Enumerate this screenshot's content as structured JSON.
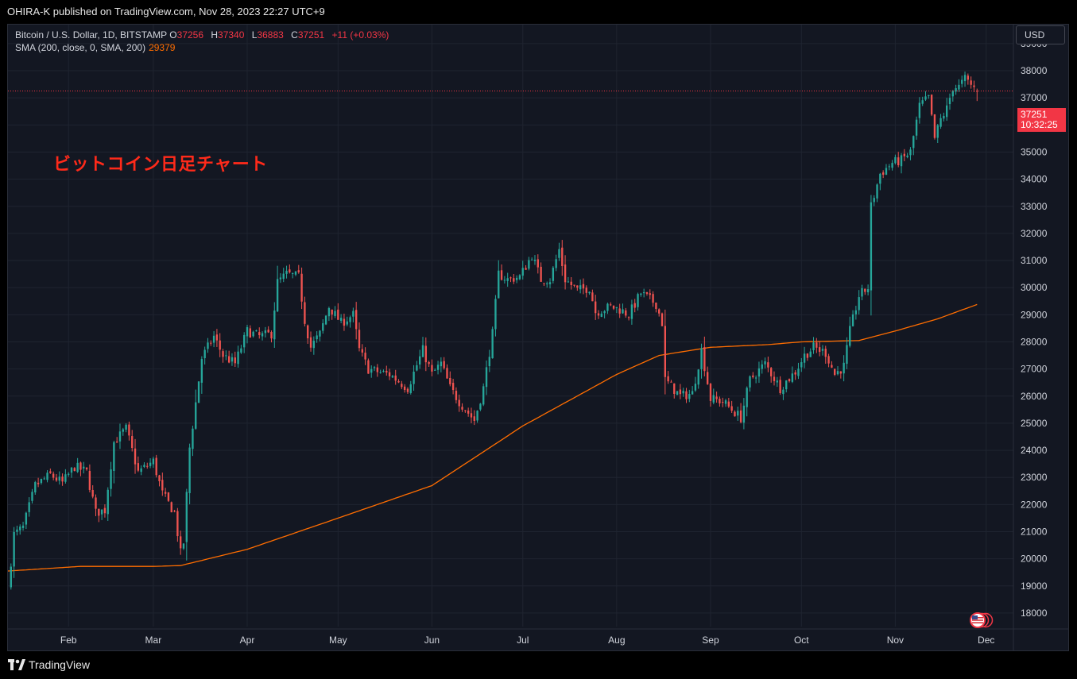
{
  "header": {
    "publisher_text": "OHIRA-K published on TradingView.com, Nov 28, 2023 22:27 UTC+9"
  },
  "legend": {
    "symbol": "Bitcoin / U.S. Dollar, 1D, BITSTAMP",
    "open_label": "O",
    "open": "37256",
    "high_label": "H",
    "high": "37340",
    "low_label": "L",
    "low": "36883",
    "close_label": "C",
    "close": "37251",
    "change": "+11 (+0.03%)",
    "sma_label": "SMA (200, close, 0, SMA, 200)",
    "sma_value": "29379"
  },
  "annotation": "ビットコイン日足チャート",
  "price_scale": {
    "currency": "USD",
    "last_price": "37251",
    "countdown": "10:32:25"
  },
  "footer": {
    "brand": "TradingView"
  },
  "colors": {
    "background": "#131722",
    "grid": "#1f2430",
    "up": "#26a69a",
    "down": "#ef5350",
    "sma": "#ff6d00",
    "annotation": "#ff2a1a",
    "price_tag": "#f23645"
  },
  "chart_data": {
    "type": "candlestick",
    "y_ticks": [
      18000,
      19000,
      20000,
      21000,
      22000,
      23000,
      24000,
      25000,
      26000,
      27000,
      28000,
      29000,
      30000,
      31000,
      32000,
      33000,
      34000,
      35000,
      36000,
      37000,
      38000,
      39000
    ],
    "ylim": [
      17500,
      39700
    ],
    "x_ticks": [
      {
        "label": "Feb",
        "date": "2023-02-01"
      },
      {
        "label": "Mar",
        "date": "2023-03-01"
      },
      {
        "label": "Apr",
        "date": "2023-04-01"
      },
      {
        "label": "May",
        "date": "2023-05-01"
      },
      {
        "label": "Jun",
        "date": "2023-06-01"
      },
      {
        "label": "Jul",
        "date": "2023-07-01"
      },
      {
        "label": "Aug",
        "date": "2023-08-01"
      },
      {
        "label": "Sep",
        "date": "2023-09-01"
      },
      {
        "label": "Oct",
        "date": "2023-10-01"
      },
      {
        "label": "Nov",
        "date": "2023-11-01"
      },
      {
        "label": "Dec",
        "date": "2023-12-01"
      }
    ],
    "xlim": [
      "2023-01-12",
      "2023-12-10"
    ],
    "close_series_keypoints": [
      [
        "2023-01-12",
        18900
      ],
      [
        "2023-01-14",
        20900
      ],
      [
        "2023-01-17",
        21150
      ],
      [
        "2023-01-21",
        22700
      ],
      [
        "2023-01-26",
        23100
      ],
      [
        "2023-01-30",
        22800
      ],
      [
        "2023-02-03",
        23400
      ],
      [
        "2023-02-07",
        23200
      ],
      [
        "2023-02-10",
        21700
      ],
      [
        "2023-02-13",
        21800
      ],
      [
        "2023-02-16",
        24300
      ],
      [
        "2023-02-20",
        24800
      ],
      [
        "2023-02-24",
        23200
      ],
      [
        "2023-03-01",
        23600
      ],
      [
        "2023-03-04",
        22400
      ],
      [
        "2023-03-08",
        21700
      ],
      [
        "2023-03-10",
        20200
      ],
      [
        "2023-03-11",
        20600
      ],
      [
        "2023-03-13",
        24100
      ],
      [
        "2023-03-17",
        27400
      ],
      [
        "2023-03-21",
        28200
      ],
      [
        "2023-03-24",
        27500
      ],
      [
        "2023-03-28",
        27200
      ],
      [
        "2023-04-01",
        28400
      ],
      [
        "2023-04-05",
        28200
      ],
      [
        "2023-04-09",
        28300
      ],
      [
        "2023-04-11",
        30200
      ],
      [
        "2023-04-14",
        30500
      ],
      [
        "2023-04-18",
        30400
      ],
      [
        "2023-04-20",
        28800
      ],
      [
        "2023-04-22",
        27800
      ],
      [
        "2023-04-25",
        28300
      ],
      [
        "2023-04-28",
        29300
      ],
      [
        "2023-05-02",
        28700
      ],
      [
        "2023-05-06",
        29000
      ],
      [
        "2023-05-08",
        27700
      ],
      [
        "2023-05-11",
        27000
      ],
      [
        "2023-05-14",
        26900
      ],
      [
        "2023-05-18",
        26800
      ],
      [
        "2023-05-24",
        26300
      ],
      [
        "2023-05-29",
        27700
      ],
      [
        "2023-06-01",
        26800
      ],
      [
        "2023-06-04",
        27200
      ],
      [
        "2023-06-07",
        26300
      ],
      [
        "2023-06-10",
        25800
      ],
      [
        "2023-06-15",
        25100
      ],
      [
        "2023-06-18",
        26300
      ],
      [
        "2023-06-21",
        28300
      ],
      [
        "2023-06-23",
        30500
      ],
      [
        "2023-06-26",
        30300
      ],
      [
        "2023-06-30",
        30400
      ],
      [
        "2023-07-04",
        31200
      ],
      [
        "2023-07-07",
        30300
      ],
      [
        "2023-07-10",
        30300
      ],
      [
        "2023-07-13",
        31400
      ],
      [
        "2023-07-15",
        30300
      ],
      [
        "2023-07-19",
        29900
      ],
      [
        "2023-07-23",
        30000
      ],
      [
        "2023-07-25",
        29100
      ],
      [
        "2023-07-30",
        29300
      ],
      [
        "2023-08-02",
        29200
      ],
      [
        "2023-08-05",
        29000
      ],
      [
        "2023-08-09",
        29800
      ],
      [
        "2023-08-14",
        29400
      ],
      [
        "2023-08-16",
        28700
      ],
      [
        "2023-08-17",
        26600
      ],
      [
        "2023-08-22",
        26000
      ],
      [
        "2023-08-26",
        26100
      ],
      [
        "2023-08-29",
        27700
      ],
      [
        "2023-09-01",
        25900
      ],
      [
        "2023-09-05",
        25800
      ],
      [
        "2023-09-11",
        25200
      ],
      [
        "2023-09-14",
        26600
      ],
      [
        "2023-09-19",
        27200
      ],
      [
        "2023-09-24",
        26300
      ],
      [
        "2023-09-29",
        26900
      ],
      [
        "2023-10-02",
        27500
      ],
      [
        "2023-10-05",
        27800
      ],
      [
        "2023-10-09",
        27600
      ],
      [
        "2023-10-12",
        26800
      ],
      [
        "2023-10-15",
        27100
      ],
      [
        "2023-10-17",
        28400
      ],
      [
        "2023-10-20",
        29700
      ],
      [
        "2023-10-23",
        30000
      ],
      [
        "2023-10-24",
        33000
      ],
      [
        "2023-10-27",
        34200
      ],
      [
        "2023-10-31",
        34600
      ],
      [
        "2023-11-03",
        34700
      ],
      [
        "2023-11-06",
        35000
      ],
      [
        "2023-11-09",
        36700
      ],
      [
        "2023-11-12",
        37000
      ],
      [
        "2023-11-14",
        35500
      ],
      [
        "2023-11-16",
        36200
      ],
      [
        "2023-11-18",
        36600
      ],
      [
        "2023-11-20",
        37400
      ],
      [
        "2023-11-22",
        37400
      ],
      [
        "2023-11-24",
        37700
      ],
      [
        "2023-11-28",
        37251
      ]
    ],
    "last": {
      "date": "2023-11-28",
      "open": 37256,
      "high": 37340,
      "low": 36883,
      "close": 37251
    },
    "sma200_keypoints": [
      [
        "2023-01-12",
        19550
      ],
      [
        "2023-02-05",
        19720
      ],
      [
        "2023-03-01",
        19720
      ],
      [
        "2023-03-10",
        19750
      ],
      [
        "2023-04-01",
        20350
      ],
      [
        "2023-05-01",
        21500
      ],
      [
        "2023-06-01",
        22700
      ],
      [
        "2023-07-01",
        24900
      ],
      [
        "2023-08-01",
        26800
      ],
      [
        "2023-08-15",
        27500
      ],
      [
        "2023-09-01",
        27800
      ],
      [
        "2023-09-20",
        27900
      ],
      [
        "2023-10-01",
        28000
      ],
      [
        "2023-10-20",
        28050
      ],
      [
        "2023-11-01",
        28400
      ],
      [
        "2023-11-15",
        28850
      ],
      [
        "2023-11-28",
        29379
      ]
    ]
  }
}
